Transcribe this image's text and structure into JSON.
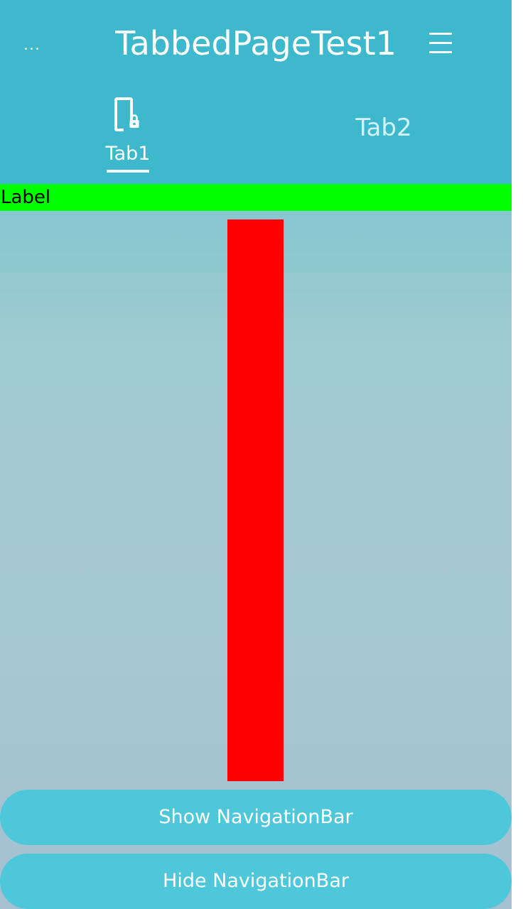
{
  "header": {
    "title": "TabbedPageTest1",
    "more_icon": "more-dots-icon",
    "more_glyph": "...",
    "menu_icon": "hamburger-menu-icon"
  },
  "tabs": [
    {
      "label": "Tab1",
      "icon": "phone-lock-icon",
      "selected": true
    },
    {
      "label": "Tab2",
      "selected": false
    }
  ],
  "content": {
    "label": "Label",
    "show_button": "Show NavigationBar",
    "hide_button": "Hide NavigationBar"
  },
  "colors": {
    "header_bg": "#3db8cc",
    "label_bg": "#00ff00",
    "box_color": "#ff0000",
    "button_bg": "#4fc7da"
  }
}
